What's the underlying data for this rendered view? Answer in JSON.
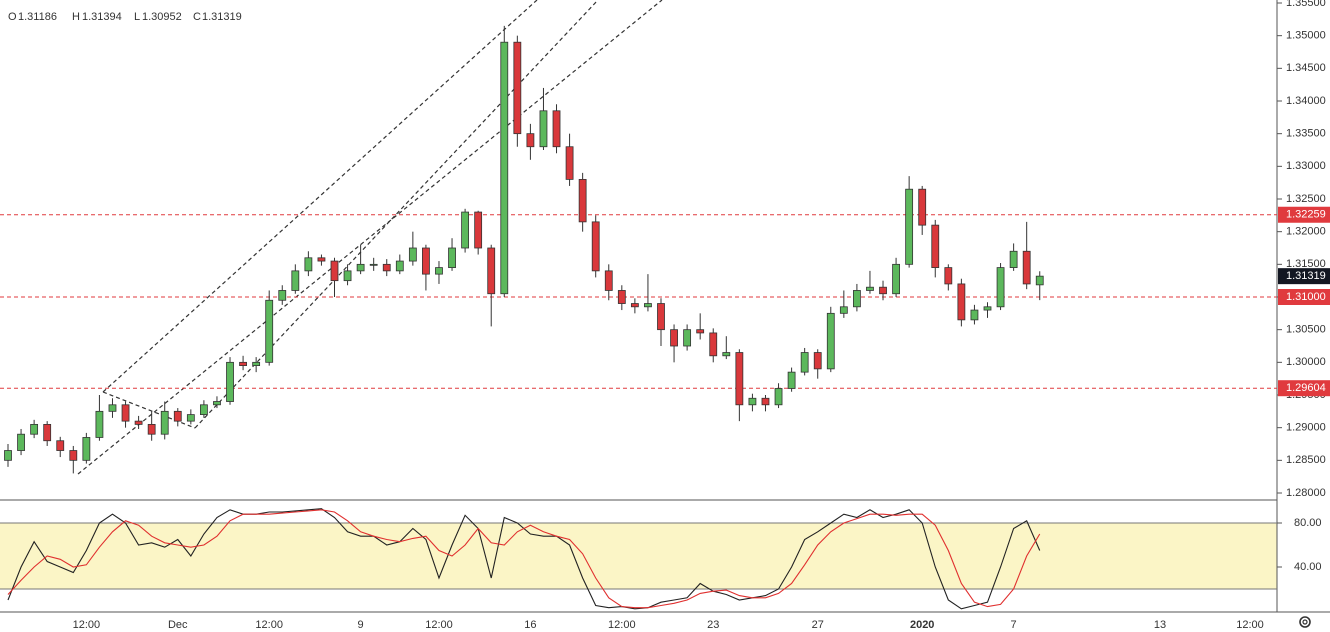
{
  "chart_data": [
    {
      "type": "candlestick",
      "ohlc_labels": [
        "O",
        "H",
        "L",
        "C"
      ],
      "up_color": "#5cb85c",
      "down_color": "#d9383b",
      "level_color": "#e03a3e",
      "categories": [
        null,
        null,
        null,
        null,
        null,
        null,
        "12:00",
        null,
        null,
        null,
        null,
        null,
        null,
        "Dec",
        null,
        null,
        null,
        null,
        null,
        null,
        "12:00",
        null,
        null,
        null,
        null,
        null,
        null,
        "9",
        null,
        null,
        null,
        null,
        null,
        "12:00",
        null,
        null,
        null,
        null,
        null,
        null,
        "16",
        null,
        null,
        null,
        null,
        null,
        null,
        "12:00",
        null,
        null,
        null,
        null,
        null,
        null,
        "23",
        null,
        null,
        null,
        null,
        null,
        null,
        null,
        "27",
        null,
        null,
        null,
        null,
        null,
        null,
        null,
        "2020",
        null,
        null,
        null,
        null,
        null,
        null,
        "7",
        null,
        null
      ],
      "future_labels": [
        "13",
        "12:00"
      ],
      "open": [
        1.285,
        1.2865,
        1.289,
        1.2905,
        1.288,
        1.2865,
        1.285,
        1.2885,
        1.2925,
        1.2935,
        1.291,
        1.2905,
        1.289,
        1.2925,
        1.291,
        1.292,
        1.2935,
        1.294,
        1.3,
        1.2995,
        1.3,
        1.3095,
        1.311,
        1.314,
        1.316,
        1.3155,
        1.3125,
        1.314,
        1.315,
        1.315,
        1.314,
        1.3155,
        1.3175,
        1.3135,
        1.3145,
        1.3175,
        1.323,
        1.3175,
        1.3105,
        1.349,
        1.335,
        1.333,
        1.3385,
        1.333,
        1.328,
        1.3215,
        1.314,
        1.311,
        1.309,
        1.3085,
        1.309,
        1.305,
        1.3025,
        1.305,
        1.3045,
        1.301,
        1.3015,
        1.2935,
        1.2945,
        1.2935,
        1.296,
        1.2985,
        1.3015,
        1.299,
        1.3075,
        1.3085,
        1.311,
        1.3115,
        1.3105,
        1.315,
        1.3265,
        1.321,
        1.3145,
        1.312,
        1.3065,
        1.308,
        1.3085,
        1.3145,
        1.317,
        1.31186
      ],
      "high": [
        1.2875,
        1.2898,
        1.2912,
        1.291,
        1.2886,
        1.2872,
        1.2892,
        1.295,
        1.2945,
        1.294,
        1.2918,
        1.2925,
        1.294,
        1.293,
        1.2928,
        1.2942,
        1.2948,
        1.3008,
        1.301,
        1.3008,
        1.311,
        1.3118,
        1.315,
        1.317,
        1.3165,
        1.316,
        1.315,
        1.318,
        1.316,
        1.3158,
        1.3165,
        1.32,
        1.318,
        1.3155,
        1.319,
        1.3235,
        1.3232,
        1.318,
        1.3515,
        1.35,
        1.3365,
        1.342,
        1.3395,
        1.335,
        1.329,
        1.3225,
        1.315,
        1.3118,
        1.3098,
        1.3135,
        1.3098,
        1.3058,
        1.3058,
        1.3075,
        1.3052,
        1.304,
        1.302,
        1.2952,
        1.295,
        1.2968,
        1.2992,
        1.3022,
        1.302,
        1.3085,
        1.311,
        1.312,
        1.314,
        1.3125,
        1.316,
        1.3285,
        1.327,
        1.3218,
        1.315,
        1.3128,
        1.3088,
        1.3092,
        1.3152,
        1.3182,
        1.3215,
        1.31394
      ],
      "low": [
        1.284,
        1.2858,
        1.2884,
        1.2872,
        1.2855,
        1.283,
        1.2845,
        1.288,
        1.2915,
        1.29,
        1.2898,
        1.288,
        1.2882,
        1.2902,
        1.2905,
        1.2915,
        1.293,
        1.2935,
        1.2988,
        1.2985,
        1.2995,
        1.3088,
        1.3105,
        1.3132,
        1.3148,
        1.31,
        1.3118,
        1.3135,
        1.314,
        1.3132,
        1.3135,
        1.3148,
        1.311,
        1.312,
        1.314,
        1.3168,
        1.3165,
        1.3055,
        1.31,
        1.333,
        1.331,
        1.3325,
        1.332,
        1.327,
        1.32,
        1.313,
        1.3095,
        1.308,
        1.3075,
        1.3078,
        1.3025,
        1.3,
        1.3018,
        1.3035,
        1.3,
        1.3005,
        1.291,
        1.2925,
        1.2925,
        1.293,
        1.2955,
        1.298,
        1.2975,
        1.2985,
        1.3068,
        1.3078,
        1.3105,
        1.3095,
        1.31,
        1.3145,
        1.3195,
        1.313,
        1.311,
        1.3055,
        1.3058,
        1.3068,
        1.308,
        1.314,
        1.3112,
        1.30952
      ],
      "close": [
        1.2865,
        1.289,
        1.2905,
        1.288,
        1.2865,
        1.285,
        1.2885,
        1.2925,
        1.2935,
        1.291,
        1.2905,
        1.289,
        1.2925,
        1.291,
        1.292,
        1.2935,
        1.294,
        1.3,
        1.2995,
        1.3,
        1.3095,
        1.311,
        1.314,
        1.316,
        1.3155,
        1.3125,
        1.314,
        1.315,
        1.315,
        1.314,
        1.3155,
        1.3175,
        1.3135,
        1.3145,
        1.3175,
        1.323,
        1.3175,
        1.3105,
        1.349,
        1.335,
        1.333,
        1.3385,
        1.333,
        1.328,
        1.3215,
        1.314,
        1.311,
        1.309,
        1.3085,
        1.309,
        1.305,
        1.3025,
        1.305,
        1.3045,
        1.301,
        1.3015,
        1.2935,
        1.2945,
        1.2935,
        1.296,
        1.2985,
        1.3015,
        1.299,
        1.3075,
        1.3085,
        1.311,
        1.3115,
        1.3105,
        1.315,
        1.3265,
        1.321,
        1.3145,
        1.312,
        1.3065,
        1.308,
        1.3085,
        1.3145,
        1.317,
        1.312,
        1.31319
      ],
      "ylim": [
        1.28,
        1.355
      ],
      "yticks": [
        {
          "value": 1.355,
          "label": "1.35500"
        },
        {
          "value": 1.35,
          "label": "1.35000"
        },
        {
          "value": 1.345,
          "label": "1.34500"
        },
        {
          "value": 1.34,
          "label": "1.34000"
        },
        {
          "value": 1.335,
          "label": "1.33500"
        },
        {
          "value": 1.33,
          "label": "1.33000"
        },
        {
          "value": 1.325,
          "label": "1.32500"
        },
        {
          "value": 1.32,
          "label": "1.32000"
        },
        {
          "value": 1.315,
          "label": "1.31500"
        },
        {
          "value": 1.31,
          "label": "1.31000"
        },
        {
          "value": 1.305,
          "label": "1.30500"
        },
        {
          "value": 1.3,
          "label": "1.30000"
        },
        {
          "value": 1.295,
          "label": "1.29500"
        },
        {
          "value": 1.29,
          "label": "1.29000"
        },
        {
          "value": 1.285,
          "label": "1.28500"
        },
        {
          "value": 1.28,
          "label": "1.28000"
        }
      ],
      "levels": [
        1.32259,
        {
          "value": 1.31,
          "label": "1.31000"
        },
        1.29604
      ]
    },
    {
      "type": "line",
      "ylim": [
        0,
        100
      ],
      "yticks": [
        {
          "value": 80,
          "label": "80.00"
        },
        {
          "value": 40,
          "label": "40.00"
        }
      ],
      "band": [
        20,
        80
      ],
      "band_color": "#fbf5c6",
      "series": [
        {
          "color": "#222222",
          "values": [
            10,
            40,
            63,
            45,
            40,
            35,
            55,
            80,
            88,
            80,
            60,
            62,
            58,
            65,
            50,
            70,
            85,
            92,
            88,
            88,
            90,
            90,
            91,
            92,
            93,
            85,
            72,
            68,
            68,
            60,
            63,
            75,
            65,
            30,
            60,
            87,
            75,
            30,
            85,
            80,
            70,
            68,
            68,
            60,
            30,
            5,
            3,
            4,
            2,
            3,
            8,
            10,
            12,
            25,
            18,
            15,
            10,
            12,
            14,
            20,
            40,
            65,
            72,
            80,
            88,
            85,
            92,
            85,
            88,
            92,
            80,
            40,
            10,
            2,
            5,
            8,
            40,
            75,
            82,
            55
          ]
        },
        {
          "color": "#e0302f",
          "values": [
            15,
            28,
            40,
            50,
            47,
            40,
            42,
            58,
            72,
            82,
            78,
            68,
            62,
            60,
            58,
            60,
            68,
            82,
            88,
            88,
            88,
            89,
            90,
            91,
            92,
            90,
            82,
            72,
            68,
            65,
            63,
            66,
            68,
            55,
            50,
            60,
            75,
            62,
            60,
            72,
            78,
            72,
            68,
            65,
            52,
            30,
            12,
            4,
            3,
            3,
            5,
            7,
            10,
            16,
            18,
            19,
            14,
            12,
            12,
            16,
            25,
            42,
            60,
            72,
            80,
            84,
            88,
            88,
            87,
            88,
            88,
            78,
            55,
            25,
            8,
            4,
            6,
            20,
            50,
            70
          ]
        }
      ]
    }
  ]
}
